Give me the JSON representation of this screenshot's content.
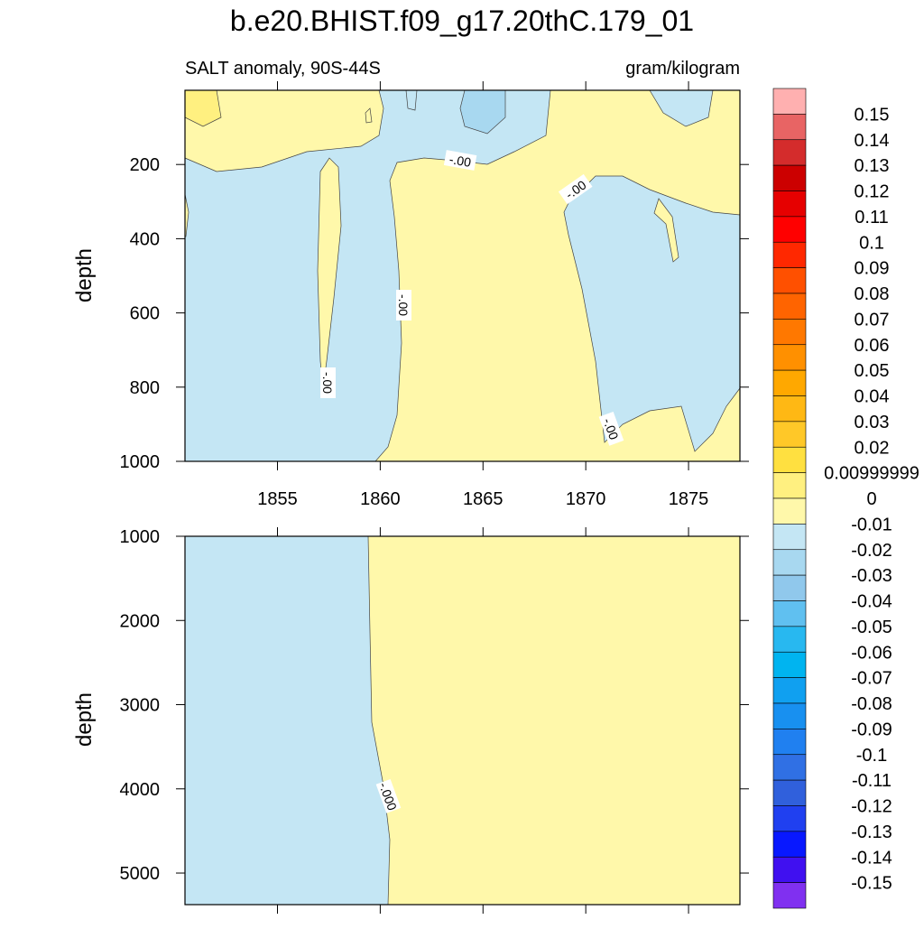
{
  "title": "b.e20.BHIST.f09_g17.20thC.179_01",
  "chart_data": [
    {
      "type": "contour",
      "subtitle_left": "SALT anomaly, 90S-44S",
      "subtitle_right": "gram/kilogram",
      "y_label": "depth",
      "xlim": [
        1850.5,
        1877.5
      ],
      "xticks": [
        1855,
        1860,
        1865,
        1870,
        1875
      ],
      "ylim": [
        1000,
        0
      ],
      "yticks": [
        200,
        400,
        600,
        800,
        1000
      ],
      "contour_labels": [
        "-.00",
        "-.00",
        "-.00",
        "-.00",
        "-.00"
      ]
    },
    {
      "type": "contour",
      "y_label": "depth",
      "xlim": [
        1850.5,
        1877.5
      ],
      "xticks": [
        1855,
        1860,
        1865,
        1870,
        1875
      ],
      "ylim": [
        5375,
        1000
      ],
      "yticks": [
        1000,
        2000,
        3000,
        4000,
        5000
      ],
      "contour_labels": [
        "-.000"
      ]
    }
  ],
  "colorbar": {
    "labels": [
      0.15,
      0.14,
      0.13,
      0.12,
      0.11,
      0.1,
      0.09,
      0.08,
      0.07,
      0.06,
      0.05,
      0.04,
      0.03,
      0.02,
      0.00999999,
      0,
      -0.01,
      -0.02,
      -0.03,
      -0.04,
      -0.05,
      -0.06,
      -0.07,
      -0.08,
      -0.09,
      -0.1,
      -0.11,
      -0.12,
      -0.13,
      -0.14,
      -0.15
    ],
    "colors": [
      "#ffb0b0",
      "#e86464",
      "#d42c2c",
      "#cc0000",
      "#e60000",
      "#ff0000",
      "#ff2800",
      "#ff5000",
      "#ff6400",
      "#ff7800",
      "#ff9000",
      "#ffa800",
      "#ffb814",
      "#ffc828",
      "#ffe040",
      "#fff080",
      "#fff8aa",
      "#c4e6f4",
      "#a8d8f0",
      "#90c8ec",
      "#60c0f0",
      "#28b8f0",
      "#00b4f0",
      "#10a0f0",
      "#1890f0",
      "#2080f0",
      "#3070e4",
      "#3060dc",
      "#2040f0",
      "#0818ff",
      "#4010f0",
      "#8030f0"
    ]
  }
}
